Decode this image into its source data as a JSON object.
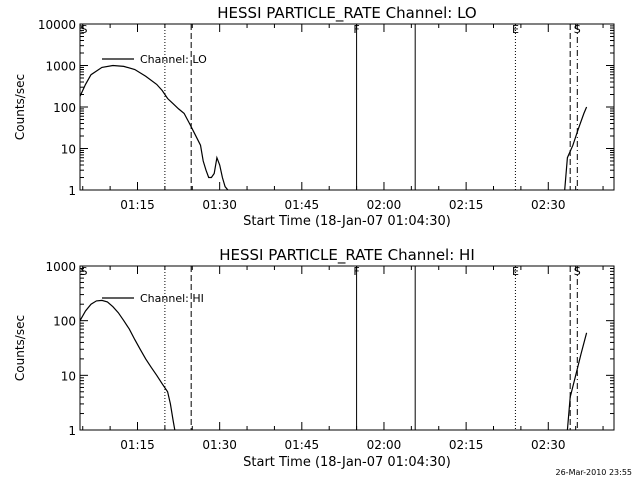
{
  "footer": "26-Mar-2010 23:55",
  "chart_data": [
    {
      "type": "line",
      "title": "HESSI PARTICLE_RATE Channel: LO",
      "xlabel": "Start Time (18-Jan-07 01:04:30)",
      "ylabel": "Counts/sec",
      "x_ticks": [
        "01:15",
        "01:30",
        "01:45",
        "02:00",
        "02:15",
        "02:30"
      ],
      "x_tick_minutes": [
        10.5,
        25.5,
        40.5,
        55.5,
        70.5,
        85.5
      ],
      "y_ticks": [
        "1",
        "10",
        "100",
        "1000",
        "10000"
      ],
      "y_scale": "log",
      "ylim": [
        1,
        10000
      ],
      "xlim_minutes": [
        0,
        97.5
      ],
      "series": [
        {
          "name": "Channel: LO",
          "points": [
            [
              0,
              180
            ],
            [
              1,
              350
            ],
            [
              2,
              600
            ],
            [
              4,
              900
            ],
            [
              6,
              1000
            ],
            [
              8,
              950
            ],
            [
              10,
              800
            ],
            [
              12,
              550
            ],
            [
              14,
              350
            ],
            [
              15,
              250
            ],
            [
              16,
              160
            ],
            [
              17,
              120
            ],
            [
              18,
              90
            ],
            [
              19,
              70
            ],
            [
              20,
              40
            ],
            [
              21,
              22
            ],
            [
              22,
              12
            ],
            [
              22.5,
              5
            ],
            [
              23,
              3
            ],
            [
              23.5,
              2
            ],
            [
              24,
              2
            ],
            [
              24.5,
              2.5
            ],
            [
              25,
              6
            ],
            [
              25.5,
              4
            ],
            [
              26,
              2
            ],
            [
              26.5,
              1.2
            ],
            [
              27,
              1
            ]
          ]
        },
        {
          "name": "",
          "points": [
            [
              88.5,
              1
            ],
            [
              89,
              6
            ],
            [
              90,
              12
            ],
            [
              91,
              30
            ],
            [
              92,
              70
            ],
            [
              92.5,
              100
            ]
          ]
        }
      ],
      "vlines": [
        {
          "minute": 15.5,
          "style": "dotted",
          "label": ""
        },
        {
          "minute": 20.3,
          "style": "dashed",
          "label": ""
        },
        {
          "minute": 50.5,
          "style": "solid",
          "label": "F"
        },
        {
          "minute": 61.2,
          "style": "solid",
          "label": ""
        },
        {
          "minute": 79.5,
          "style": "dotted",
          "label": "E"
        },
        {
          "minute": 89.5,
          "style": "dashed",
          "label": ""
        },
        {
          "minute": 90.8,
          "style": "dashdot",
          "label": "S"
        }
      ],
      "corner_label": "S"
    },
    {
      "type": "line",
      "title": "HESSI PARTICLE_RATE Channel: HI",
      "xlabel": "Start Time (18-Jan-07 01:04:30)",
      "ylabel": "Counts/sec",
      "x_ticks": [
        "01:15",
        "01:30",
        "01:45",
        "02:00",
        "02:15",
        "02:30"
      ],
      "x_tick_minutes": [
        10.5,
        25.5,
        40.5,
        55.5,
        70.5,
        85.5
      ],
      "y_ticks": [
        "1",
        "10",
        "100",
        "1000"
      ],
      "y_scale": "log",
      "ylim": [
        1,
        1000
      ],
      "xlim_minutes": [
        0,
        97.5
      ],
      "series": [
        {
          "name": "Channel: HI",
          "points": [
            [
              0,
              100
            ],
            [
              1,
              150
            ],
            [
              2,
              200
            ],
            [
              3,
              230
            ],
            [
              4,
              235
            ],
            [
              5,
              220
            ],
            [
              6,
              180
            ],
            [
              7,
              140
            ],
            [
              8,
              100
            ],
            [
              9,
              70
            ],
            [
              10,
              45
            ],
            [
              11,
              30
            ],
            [
              12,
              20
            ],
            [
              13,
              14
            ],
            [
              14,
              10
            ],
            [
              15,
              7
            ],
            [
              16,
              5
            ],
            [
              16.5,
              3
            ],
            [
              17,
              1.5
            ],
            [
              17.3,
              1
            ]
          ]
        },
        {
          "name": "",
          "points": [
            [
              89,
              1
            ],
            [
              89.5,
              4
            ],
            [
              90.5,
              10
            ],
            [
              91.5,
              25
            ],
            [
              92.5,
              60
            ]
          ]
        }
      ],
      "vlines": [
        {
          "minute": 15.5,
          "style": "dotted",
          "label": ""
        },
        {
          "minute": 20.3,
          "style": "dashed",
          "label": ""
        },
        {
          "minute": 50.5,
          "style": "solid",
          "label": "F"
        },
        {
          "minute": 61.2,
          "style": "solid",
          "label": ""
        },
        {
          "minute": 79.5,
          "style": "dotted",
          "label": "E"
        },
        {
          "minute": 89.5,
          "style": "dashed",
          "label": ""
        },
        {
          "minute": 90.8,
          "style": "dashdot",
          "label": "S"
        }
      ],
      "corner_label": "S"
    }
  ]
}
